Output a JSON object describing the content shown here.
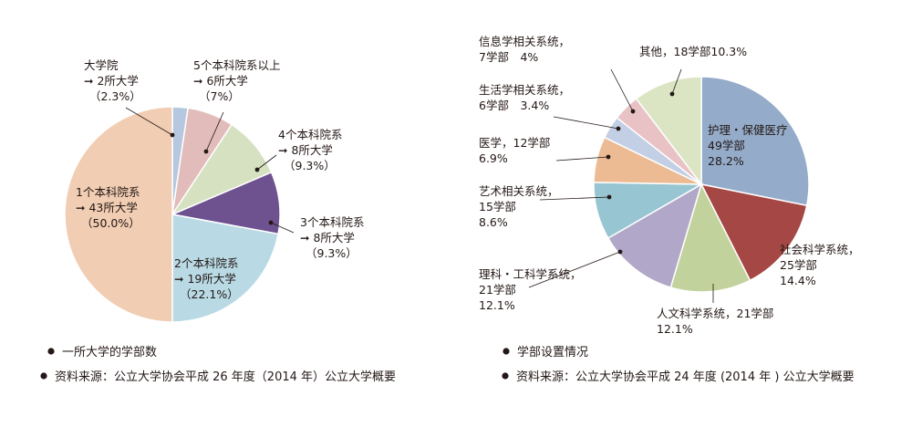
{
  "chart_data": [
    {
      "type": "pie",
      "slices": [
        {
          "name": "大学院",
          "value": 2,
          "pct_label": "（2.3%）",
          "lines": [
            "大学院",
            "➞  2所大学",
            "（2.3%）"
          ],
          "color": "#b5c8df"
        },
        {
          "name": "5个本科院系以上",
          "value": 6,
          "pct_label": "（7%）",
          "lines": [
            "5个本科院系以上",
            "➞  6所大学",
            "（7%）"
          ],
          "color": "#e2bcbb"
        },
        {
          "name": "4个本科院系",
          "value": 8,
          "pct_label": "（9.3%）",
          "lines": [
            "4个本科院系",
            "➞  8所大学",
            "（9.3%）"
          ],
          "color": "#d5e1c0"
        },
        {
          "name": "3个本科院系",
          "value": 8,
          "pct_label": "（9.3%）",
          "lines": [
            "3个本科院系",
            "➞  8所大学",
            "（9.3%）"
          ],
          "color": "#6e5290"
        },
        {
          "name": "2个本科院系",
          "value": 19,
          "pct_label": "（22.1%）",
          "lines": [
            "2个本科院系",
            "➞  19所大学",
            "（22.1%）"
          ],
          "color": "#b9dae5"
        },
        {
          "name": "1个本科院系",
          "value": 43,
          "pct_label": "（50.0%）",
          "lines": [
            "1个本科院系",
            "➞  43所大学",
            "（50.0%）"
          ],
          "color": "#f1cdb3"
        }
      ],
      "caption": "一所大学的学部数",
      "source": "资料来源：公立大学协会平成 26 年度（2014 年）公立大学概要"
    },
    {
      "type": "pie",
      "slices": [
        {
          "name": "护理・保健医疗",
          "value": 49,
          "lines": [
            "护理・保健医疗",
            "49学部",
            "28.2%"
          ],
          "color": "#94acca"
        },
        {
          "name": "社会科学系统",
          "value": 25,
          "lines": [
            "社会科学系统，",
            "25学部",
            "14.4%"
          ],
          "color": "#a54744"
        },
        {
          "name": "人文科学系统",
          "value": 21,
          "lines": [
            "人文科学系统，21学部",
            "12.1%"
          ],
          "color": "#c2d29d"
        },
        {
          "name": "理科・工科学系统",
          "value": 21,
          "lines": [
            "理科・工科学系统，",
            "21学部",
            "12.1%"
          ],
          "color": "#b1a7c8"
        },
        {
          "name": "艺术相关系统",
          "value": 15,
          "lines": [
            "艺术相关系统，",
            "15学部",
            "8.6%"
          ],
          "color": "#97c5d1"
        },
        {
          "name": "医学",
          "value": 12,
          "lines": [
            "医学，12学部",
            "6.9%"
          ],
          "color": "#ecbb93"
        },
        {
          "name": "生活学相关系统",
          "value": 6,
          "lines": [
            "生活学相关系统，",
            "6学部　3.4%"
          ],
          "color": "#c2cfe4"
        },
        {
          "name": "信息学相关系统",
          "value": 7,
          "lines": [
            "信息学相关系统，",
            "7学部　4%"
          ],
          "color": "#e8c2c5"
        },
        {
          "name": "其他",
          "value": 18,
          "lines": [
            "其他，18学部10.3%"
          ],
          "color": "#dbe5c4"
        }
      ],
      "caption": "学部设置情况",
      "source": "资料来源：公立大学协会平成 24 年度 (2014 年 ) 公立大学概要"
    }
  ]
}
